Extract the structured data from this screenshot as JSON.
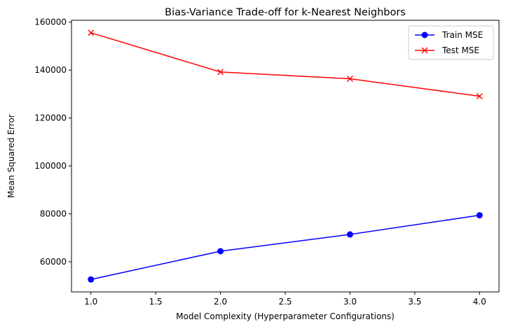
{
  "chart_data": {
    "type": "line",
    "title": "Bias-Variance Trade-off for k-Nearest Neighbors",
    "xlabel": "Model Complexity (Hyperparameter Configurations)",
    "ylabel": "Mean Squared Error",
    "x": [
      1.0,
      2.0,
      3.0,
      4.0
    ],
    "xlim": [
      0.85,
      4.15
    ],
    "ylim": [
      47400,
      160800
    ],
    "xticks": [
      1.0,
      1.5,
      2.0,
      2.5,
      3.0,
      3.5,
      4.0
    ],
    "xtick_labels": [
      "1.0",
      "1.5",
      "2.0",
      "2.5",
      "3.0",
      "3.5",
      "4.0"
    ],
    "yticks": [
      60000,
      80000,
      100000,
      120000,
      140000,
      160000
    ],
    "ytick_labels": [
      "60000",
      "80000",
      "100000",
      "120000",
      "140000",
      "160000"
    ],
    "grid": false,
    "legend_position": "upper right",
    "series": [
      {
        "name": "Train MSE",
        "color": "#0000ff",
        "marker": "circle",
        "values": [
          52600,
          64400,
          71400,
          79400
        ]
      },
      {
        "name": "Test MSE",
        "color": "#ff0000",
        "marker": "x",
        "values": [
          155600,
          139200,
          136400,
          129100
        ]
      }
    ]
  }
}
